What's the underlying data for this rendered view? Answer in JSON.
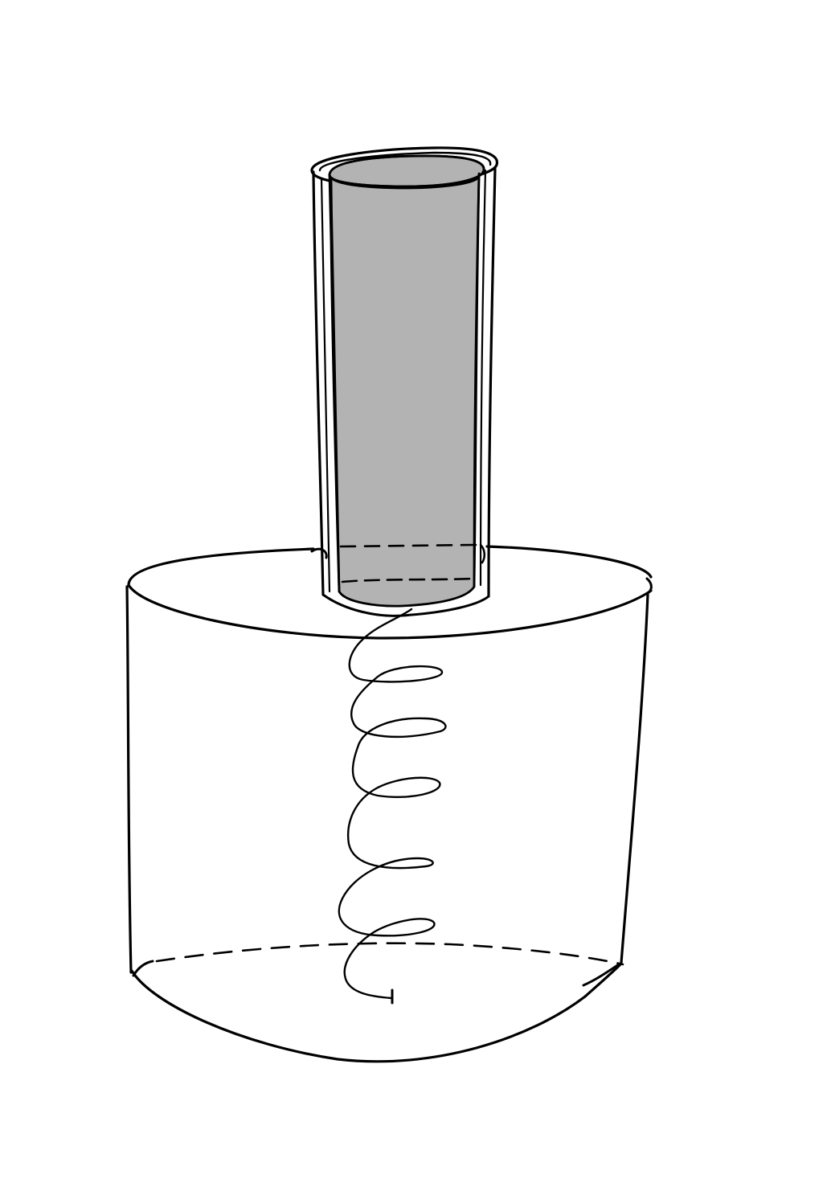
{
  "diagram": {
    "colors": {
      "ink": "#000000",
      "tube_fill": "#b3b3b3",
      "paper": "#ffffff"
    },
    "elements": [
      "outer-tube",
      "inner-rod",
      "cylindrical-container",
      "coil-spring"
    ]
  }
}
